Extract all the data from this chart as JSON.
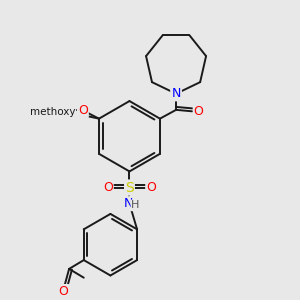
{
  "background_color": "#ffffff",
  "bond_color": "#1a1a1a",
  "atom_colors": {
    "O": "#ff0000",
    "N": "#0000ff",
    "S": "#cccc00",
    "C": "#1a1a1a",
    "H": "#555555"
  },
  "figsize": [
    3.0,
    3.0
  ],
  "dpi": 100,
  "bg_gray": "#e8e8e8"
}
